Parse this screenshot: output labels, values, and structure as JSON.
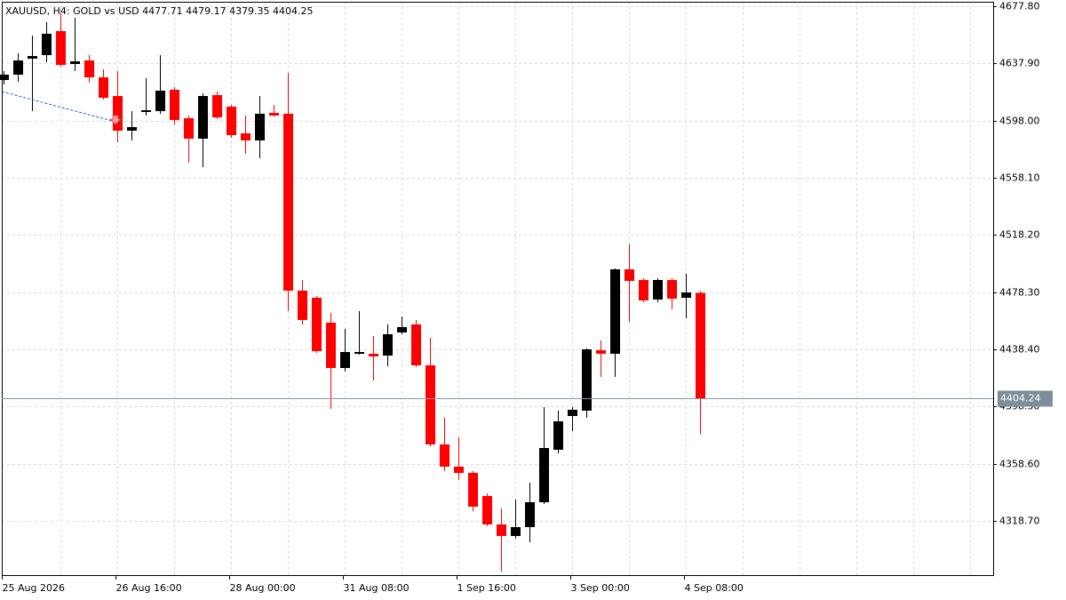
{
  "chart_data": {
    "type": "candlestick",
    "title": "XAUUSD, H4:  GOLD vs USD  4477.71 4479.17 4379.35 4404.25",
    "categories": [
      "25 Aug 2026",
      null,
      null,
      null,
      null,
      null,
      null,
      null,
      "26 Aug 16:00",
      null,
      null,
      null,
      null,
      null,
      null,
      null,
      "28 Aug 00:00",
      null,
      null,
      null,
      null,
      null,
      null,
      null,
      "31 Aug 08:00",
      null,
      null,
      null,
      null,
      null,
      null,
      null,
      "1 Sep 16:00",
      null,
      null,
      null,
      null,
      null,
      null,
      null,
      "3 Sep 00:00",
      null,
      null,
      null,
      null,
      null,
      null,
      null,
      "4 Sep 08:00",
      null
    ],
    "open": [
      4626.3,
      4630.0,
      4641.2,
      4643.7,
      4660.4,
      4637.5,
      4639.9,
      4628.2,
      4615.1,
      4591.0,
      4604.0,
      4604.6,
      4619.5,
      4599.6,
      4585.4,
      4615.8,
      4607.7,
      4589.1,
      4584.1,
      4603.4,
      4602.7,
      4479.4,
      4474.4,
      4457.0,
      4425.4,
      4436.0,
      4435.3,
      4434.1,
      4450.2,
      4455.8,
      4427.3,
      4372.1,
      4356.6,
      4352.3,
      4336.1,
      4316.3,
      4308.2,
      4314.4,
      4331.8,
      4368.4,
      4391.9,
      4395.7,
      4437.8,
      4435.3,
      4494.2,
      4486.8,
      4473.2,
      4486.8,
      4474.4,
      4477.71
    ],
    "high": [
      4632.5,
      4644.9,
      4657.3,
      4666.6,
      4672.8,
      4669.7,
      4643.7,
      4633.7,
      4632.5,
      4604.6,
      4627.5,
      4643.7,
      4621.3,
      4601.5,
      4617.0,
      4618.2,
      4608.9,
      4601.5,
      4615.1,
      4608.9,
      4631.3,
      4486.8,
      4475.6,
      4463.9,
      4452.7,
      4465.1,
      4447.7,
      4455.8,
      4461.4,
      4458.9,
      4446.5,
      4390.7,
      4377.1,
      4353.5,
      4338.0,
      4327.5,
      4333.7,
      4345.4,
      4398.1,
      4395.7,
      4398.1,
      4439.1,
      4444.6,
      4494.9,
      4511.6,
      4488.0,
      4488.0,
      4488.0,
      4491.1,
      4479.17
    ],
    "low": [
      4623.2,
      4625.1,
      4604.6,
      4638.7,
      4635.6,
      4632.5,
      4624.4,
      4612.7,
      4582.9,
      4584.1,
      4601.5,
      4602.7,
      4595.3,
      4568.6,
      4565.5,
      4599.0,
      4586.0,
      4574.8,
      4571.7,
      4600.9,
      4465.1,
      4455.8,
      4436.0,
      4396.9,
      4422.9,
      4434.7,
      4416.7,
      4426.7,
      4449.0,
      4426.0,
      4370.9,
      4353.5,
      4347.3,
      4325.6,
      4315.1,
      4283.4,
      4306.4,
      4303.9,
      4330.6,
      4365.9,
      4381.4,
      4390.7,
      4419.2,
      4419.2,
      4457.7,
      4471.3,
      4471.3,
      4466.3,
      4460.1,
      4379.35
    ],
    "close": [
      4630.0,
      4639.9,
      4643.0,
      4658.5,
      4636.8,
      4639.3,
      4628.2,
      4613.9,
      4591.0,
      4593.4,
      4605.2,
      4618.9,
      4598.4,
      4585.4,
      4615.1,
      4600.2,
      4587.9,
      4584.1,
      4602.7,
      4601.5,
      4479.4,
      4458.9,
      4437.2,
      4425.4,
      4436.6,
      4436.6,
      4433.5,
      4449.0,
      4453.9,
      4427.3,
      4372.1,
      4356.6,
      4352.3,
      4328.7,
      4316.3,
      4308.2,
      4314.4,
      4331.8,
      4369.6,
      4388.2,
      4396.3,
      4438.4,
      4435.3,
      4494.2,
      4486.2,
      4472.5,
      4486.8,
      4473.8,
      4478.1,
      4404.25
    ],
    "up_color": "#000000",
    "down_color": "#ff0000",
    "current_price": 4404.24,
    "ylim": [
      4281.0,
      4680.9
    ],
    "yticks": [
      {
        "value": 4677.8,
        "label": "4677.80"
      },
      {
        "value": 4637.9,
        "label": "4637.90"
      },
      {
        "value": 4598.0,
        "label": "4598.00"
      },
      {
        "value": 4558.1,
        "label": "4558.10"
      },
      {
        "value": 4518.2,
        "label": "4518.20"
      },
      {
        "value": 4478.3,
        "label": "4478.30"
      },
      {
        "value": 4438.4,
        "label": "4438.40"
      },
      {
        "value": 4398.5,
        "label": "4398.50"
      },
      {
        "value": 4358.6,
        "label": "4358.60"
      },
      {
        "value": 4318.7,
        "label": "4318.70"
      }
    ],
    "grid": true
  }
}
